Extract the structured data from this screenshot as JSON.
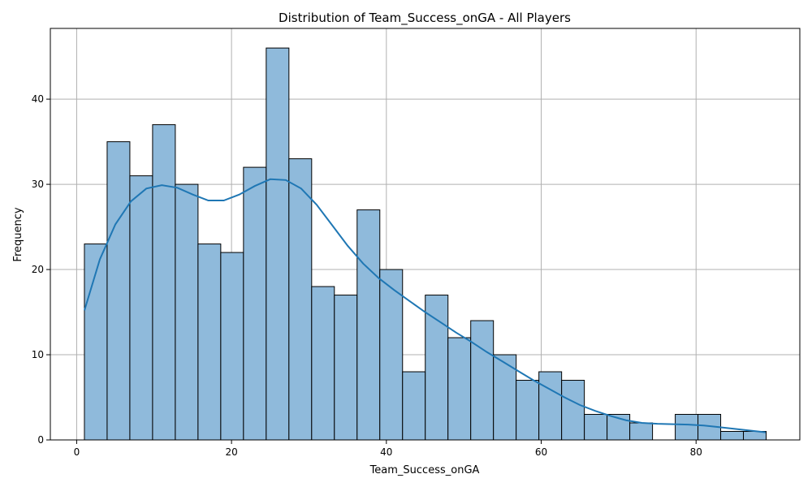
{
  "chart_data": {
    "type": "bar",
    "title": "Distribution of Team_Success_onGA - All Players",
    "xlabel": "Team_Success_onGA",
    "ylabel": "Frequency",
    "xlim": [
      -3.4,
      93.4
    ],
    "ylim": [
      0,
      48.3
    ],
    "xticks": [
      0,
      20,
      40,
      60,
      80
    ],
    "yticks": [
      0,
      10,
      20,
      30,
      40
    ],
    "grid": true,
    "bin_start": 1,
    "bin_width": 2.935,
    "values": [
      23,
      35,
      31,
      37,
      30,
      23,
      22,
      32,
      46,
      33,
      18,
      17,
      27,
      20,
      8,
      17,
      12,
      14,
      10,
      7,
      8,
      7,
      3,
      3,
      2,
      0,
      3,
      3,
      1,
      1
    ],
    "kde": {
      "x": [
        1,
        3,
        5,
        7,
        9,
        11,
        13,
        15,
        17,
        19,
        21,
        23,
        25,
        27,
        29,
        31,
        33,
        35,
        37,
        39,
        41,
        43,
        45,
        47,
        49,
        51,
        53,
        55,
        57,
        59,
        61,
        63,
        65,
        67,
        69,
        71,
        73,
        75,
        77,
        79,
        81,
        83,
        85,
        87,
        89
      ],
      "y": [
        15.2,
        21.2,
        25.3,
        28.0,
        29.5,
        29.9,
        29.6,
        28.8,
        28.1,
        28.1,
        28.8,
        29.8,
        30.6,
        30.5,
        29.5,
        27.6,
        25.2,
        22.8,
        20.7,
        19.0,
        17.6,
        16.3,
        15.0,
        13.8,
        12.6,
        11.5,
        10.3,
        9.2,
        8.1,
        7.0,
        6.0,
        5.0,
        4.1,
        3.4,
        2.8,
        2.3,
        2.0,
        1.9,
        1.85,
        1.8,
        1.7,
        1.5,
        1.3,
        1.1,
        0.9
      ]
    },
    "colors": {
      "bar_fill": "#8fbadb",
      "bar_edge": "#000000",
      "kde_line": "#1f77b4",
      "grid": "#b0b0b0"
    }
  }
}
